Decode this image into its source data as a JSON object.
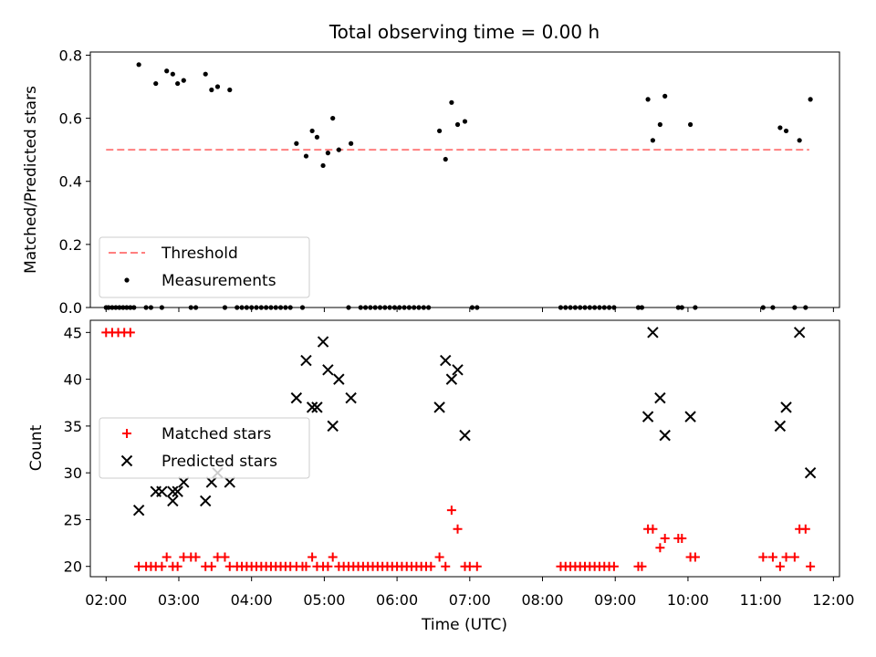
{
  "chart_data": [
    {
      "type": "scatter",
      "title": "Total observing time = 0.00 h",
      "xlabel": "",
      "ylabel": "Matched/Predicted stars",
      "xlim": [
        "01:47",
        "12:05"
      ],
      "ylim": [
        0,
        0.81
      ],
      "y_ticks": [
        "0.0",
        "0.2",
        "0.4",
        "0.6",
        "0.8"
      ],
      "legend_position": "lower-left",
      "series": [
        {
          "name": "Threshold",
          "kind": "dashed-line",
          "color": "#ff7f7f",
          "points": [
            [
              "02:00",
              0.5
            ],
            [
              "11:40",
              0.5
            ]
          ]
        },
        {
          "name": "Measurements",
          "kind": "dot",
          "color": "#000000",
          "points": [
            [
              "02:00",
              0
            ],
            [
              "02:02",
              0
            ],
            [
              "02:05",
              0
            ],
            [
              "02:08",
              0
            ],
            [
              "02:11",
              0
            ],
            [
              "02:14",
              0
            ],
            [
              "02:17",
              0
            ],
            [
              "02:20",
              0
            ],
            [
              "02:23",
              0
            ],
            [
              "02:27",
              0.77
            ],
            [
              "02:33",
              0
            ],
            [
              "02:37",
              0
            ],
            [
              "02:41",
              0.71
            ],
            [
              "02:46",
              0
            ],
            [
              "02:50",
              0.75
            ],
            [
              "02:55",
              0.74
            ],
            [
              "02:59",
              0.71
            ],
            [
              "03:04",
              0.72
            ],
            [
              "03:10",
              0
            ],
            [
              "03:14",
              0
            ],
            [
              "03:22",
              0.74
            ],
            [
              "03:27",
              0.69
            ],
            [
              "03:32",
              0.7
            ],
            [
              "03:38",
              0
            ],
            [
              "03:42",
              0.69
            ],
            [
              "03:48",
              0
            ],
            [
              "03:52",
              0
            ],
            [
              "03:56",
              0
            ],
            [
              "04:00",
              0
            ],
            [
              "04:04",
              0
            ],
            [
              "04:08",
              0
            ],
            [
              "04:12",
              0
            ],
            [
              "04:16",
              0
            ],
            [
              "04:20",
              0
            ],
            [
              "04:24",
              0
            ],
            [
              "04:28",
              0
            ],
            [
              "04:32",
              0
            ],
            [
              "04:42",
              0
            ],
            [
              "04:37",
              0.52
            ],
            [
              "04:45",
              0.48
            ],
            [
              "04:50",
              0.56
            ],
            [
              "04:54",
              0.54
            ],
            [
              "04:59",
              0.45
            ],
            [
              "05:03",
              0.49
            ],
            [
              "05:07",
              0.6
            ],
            [
              "05:12",
              0.5
            ],
            [
              "05:22",
              0.52
            ],
            [
              "05:20",
              0
            ],
            [
              "05:30",
              0
            ],
            [
              "05:34",
              0
            ],
            [
              "05:38",
              0
            ],
            [
              "05:42",
              0
            ],
            [
              "05:46",
              0
            ],
            [
              "05:50",
              0
            ],
            [
              "05:54",
              0
            ],
            [
              "05:58",
              0
            ],
            [
              "06:02",
              0
            ],
            [
              "06:06",
              0
            ],
            [
              "06:10",
              0
            ],
            [
              "06:14",
              0
            ],
            [
              "06:18",
              0
            ],
            [
              "06:22",
              0
            ],
            [
              "06:26",
              0
            ],
            [
              "06:35",
              0.56
            ],
            [
              "06:40",
              0.47
            ],
            [
              "06:45",
              0.65
            ],
            [
              "06:50",
              0.58
            ],
            [
              "06:56",
              0.59
            ],
            [
              "07:02",
              0
            ],
            [
              "07:06",
              0
            ],
            [
              "08:15",
              0
            ],
            [
              "08:19",
              0
            ],
            [
              "08:23",
              0
            ],
            [
              "08:27",
              0
            ],
            [
              "08:31",
              0
            ],
            [
              "08:35",
              0
            ],
            [
              "08:39",
              0
            ],
            [
              "08:43",
              0
            ],
            [
              "08:47",
              0
            ],
            [
              "08:51",
              0
            ],
            [
              "08:55",
              0
            ],
            [
              "08:59",
              0
            ],
            [
              "09:19",
              0
            ],
            [
              "09:22",
              0
            ],
            [
              "09:27",
              0.66
            ],
            [
              "09:31",
              0.53
            ],
            [
              "09:37",
              0.58
            ],
            [
              "09:41",
              0.67
            ],
            [
              "09:52",
              0
            ],
            [
              "09:55",
              0
            ],
            [
              "10:02",
              0.58
            ],
            [
              "10:06",
              0
            ],
            [
              "11:02",
              0
            ],
            [
              "11:10",
              0
            ],
            [
              "11:16",
              0.57
            ],
            [
              "11:21",
              0.56
            ],
            [
              "11:28",
              0
            ],
            [
              "11:32",
              0.53
            ],
            [
              "11:37",
              0
            ],
            [
              "11:41",
              0.66
            ]
          ]
        }
      ]
    },
    {
      "type": "scatter",
      "title": "",
      "xlabel": "Time (UTC)",
      "ylabel": "Count",
      "xlim": [
        "01:47",
        "12:05"
      ],
      "ylim": [
        18.9,
        46.3
      ],
      "x_ticks": [
        "02:00",
        "03:00",
        "04:00",
        "05:00",
        "06:00",
        "07:00",
        "08:00",
        "09:00",
        "10:00",
        "11:00",
        "12:00"
      ],
      "y_ticks": [
        "20",
        "25",
        "30",
        "35",
        "40",
        "45"
      ],
      "legend_position": "center-left",
      "series": [
        {
          "name": "Matched stars",
          "kind": "plus",
          "color": "#ff0000",
          "points": [
            [
              "02:00",
              45
            ],
            [
              "02:05",
              45
            ],
            [
              "02:10",
              45
            ],
            [
              "02:15",
              45
            ],
            [
              "02:20",
              45
            ],
            [
              "02:27",
              20
            ],
            [
              "02:33",
              20
            ],
            [
              "02:37",
              20
            ],
            [
              "02:41",
              20
            ],
            [
              "02:46",
              20
            ],
            [
              "02:50",
              21
            ],
            [
              "02:55",
              20
            ],
            [
              "02:59",
              20
            ],
            [
              "03:04",
              21
            ],
            [
              "03:10",
              21
            ],
            [
              "03:14",
              21
            ],
            [
              "03:22",
              20
            ],
            [
              "03:27",
              20
            ],
            [
              "03:32",
              21
            ],
            [
              "03:38",
              21
            ],
            [
              "03:42",
              20
            ],
            [
              "03:48",
              20
            ],
            [
              "03:52",
              20
            ],
            [
              "03:56",
              20
            ],
            [
              "04:00",
              20
            ],
            [
              "04:04",
              20
            ],
            [
              "04:08",
              20
            ],
            [
              "04:12",
              20
            ],
            [
              "04:16",
              20
            ],
            [
              "04:20",
              20
            ],
            [
              "04:24",
              20
            ],
            [
              "04:28",
              20
            ],
            [
              "04:32",
              20
            ],
            [
              "04:37",
              20
            ],
            [
              "04:42",
              20
            ],
            [
              "04:45",
              20
            ],
            [
              "04:50",
              21
            ],
            [
              "04:54",
              20
            ],
            [
              "04:59",
              20
            ],
            [
              "05:03",
              20
            ],
            [
              "05:07",
              21
            ],
            [
              "05:12",
              20
            ],
            [
              "05:16",
              20
            ],
            [
              "05:20",
              20
            ],
            [
              "05:24",
              20
            ],
            [
              "05:28",
              20
            ],
            [
              "05:32",
              20
            ],
            [
              "05:36",
              20
            ],
            [
              "05:40",
              20
            ],
            [
              "05:44",
              20
            ],
            [
              "05:48",
              20
            ],
            [
              "05:52",
              20
            ],
            [
              "05:56",
              20
            ],
            [
              "06:00",
              20
            ],
            [
              "06:04",
              20
            ],
            [
              "06:08",
              20
            ],
            [
              "06:12",
              20
            ],
            [
              "06:16",
              20
            ],
            [
              "06:20",
              20
            ],
            [
              "06:24",
              20
            ],
            [
              "06:28",
              20
            ],
            [
              "06:35",
              21
            ],
            [
              "06:40",
              20
            ],
            [
              "06:45",
              26
            ],
            [
              "06:50",
              24
            ],
            [
              "06:56",
              20
            ],
            [
              "07:00",
              20
            ],
            [
              "07:06",
              20
            ],
            [
              "08:15",
              20
            ],
            [
              "08:19",
              20
            ],
            [
              "08:23",
              20
            ],
            [
              "08:27",
              20
            ],
            [
              "08:31",
              20
            ],
            [
              "08:35",
              20
            ],
            [
              "08:39",
              20
            ],
            [
              "08:43",
              20
            ],
            [
              "08:47",
              20
            ],
            [
              "08:51",
              20
            ],
            [
              "08:55",
              20
            ],
            [
              "08:59",
              20
            ],
            [
              "09:19",
              20
            ],
            [
              "09:22",
              20
            ],
            [
              "09:27",
              24
            ],
            [
              "09:31",
              24
            ],
            [
              "09:37",
              22
            ],
            [
              "09:41",
              23
            ],
            [
              "09:52",
              23
            ],
            [
              "09:55",
              23
            ],
            [
              "10:02",
              21
            ],
            [
              "10:06",
              21
            ],
            [
              "11:02",
              21
            ],
            [
              "11:10",
              21
            ],
            [
              "11:16",
              20
            ],
            [
              "11:21",
              21
            ],
            [
              "11:28",
              21
            ],
            [
              "11:32",
              24
            ],
            [
              "11:37",
              24
            ],
            [
              "11:41",
              20
            ]
          ]
        },
        {
          "name": "Predicted stars",
          "kind": "cross",
          "color": "#000000",
          "points": [
            [
              "02:27",
              26
            ],
            [
              "02:41",
              28
            ],
            [
              "02:46",
              28
            ],
            [
              "02:55",
              27
            ],
            [
              "02:55",
              28
            ],
            [
              "02:59",
              28
            ],
            [
              "03:04",
              29
            ],
            [
              "03:22",
              27
            ],
            [
              "03:27",
              29
            ],
            [
              "03:32",
              30
            ],
            [
              "03:42",
              29
            ],
            [
              "04:37",
              38
            ],
            [
              "04:45",
              42
            ],
            [
              "04:50",
              37
            ],
            [
              "04:54",
              37
            ],
            [
              "04:59",
              44
            ],
            [
              "05:03",
              41
            ],
            [
              "05:07",
              35
            ],
            [
              "05:12",
              40
            ],
            [
              "05:22",
              38
            ],
            [
              "06:35",
              37
            ],
            [
              "06:40",
              42
            ],
            [
              "06:45",
              40
            ],
            [
              "06:50",
              41
            ],
            [
              "06:56",
              34
            ],
            [
              "09:27",
              36
            ],
            [
              "09:31",
              45
            ],
            [
              "09:37",
              38
            ],
            [
              "09:41",
              34
            ],
            [
              "10:02",
              36
            ],
            [
              "11:16",
              35
            ],
            [
              "11:21",
              37
            ],
            [
              "11:32",
              45
            ],
            [
              "11:41",
              30
            ]
          ]
        }
      ]
    }
  ]
}
